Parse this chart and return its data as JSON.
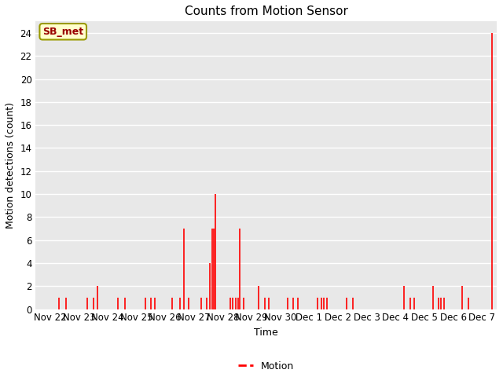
{
  "title": "Counts from Motion Sensor",
  "ylabel": "Motion detections (count)",
  "xlabel": "Time",
  "legend_label": "Motion",
  "line_color": "#ff0000",
  "plot_bg_color": "#e8e8e8",
  "fig_bg_color": "#ffffff",
  "ylim": [
    0,
    25
  ],
  "yticks": [
    0,
    2,
    4,
    6,
    8,
    10,
    12,
    14,
    16,
    18,
    20,
    22,
    24
  ],
  "annotation_text": "SB_met",
  "annotation_color": "#990000",
  "annotation_bg": "#ffffcc",
  "annotation_border": "#999900",
  "x_tick_labels": [
    "Nov 22",
    "Nov 23",
    "Nov 24",
    "Nov 25",
    "Nov 26",
    "Nov 27",
    "Nov 28",
    "Nov 29",
    "Nov 30",
    "Dec 1",
    "Dec 2",
    "Dec 3",
    "Dec 4",
    "Dec 5",
    "Dec 6",
    "Dec 7"
  ],
  "num_ticks": 16,
  "data_days_offset": [
    0.3,
    0.55,
    1.3,
    1.5,
    1.65,
    2.35,
    2.6,
    3.3,
    3.5,
    3.65,
    4.25,
    4.5,
    4.65,
    4.8,
    5.25,
    5.45,
    5.55,
    5.62,
    5.68,
    5.75,
    6.25,
    6.35,
    6.45,
    6.52,
    6.6,
    6.72,
    7.25,
    7.45,
    7.6,
    8.25,
    8.45,
    8.62,
    9.3,
    9.42,
    9.52,
    9.62,
    10.3,
    10.52,
    12.3,
    12.52,
    12.65,
    13.3,
    13.48,
    13.58,
    13.68,
    14.3,
    14.52,
    15.35
  ],
  "data_values": [
    1,
    1,
    1,
    1,
    2,
    1,
    1,
    1,
    1,
    1,
    1,
    1,
    7,
    1,
    1,
    1,
    4,
    7,
    7,
    10,
    1,
    1,
    1,
    1,
    7,
    1,
    2,
    1,
    1,
    1,
    1,
    1,
    1,
    1,
    1,
    1,
    1,
    1,
    2,
    1,
    1,
    2,
    1,
    1,
    1,
    2,
    1,
    24
  ],
  "title_fontsize": 11,
  "axis_label_fontsize": 9,
  "tick_fontsize": 8.5,
  "figsize": [
    6.4,
    4.8
  ],
  "dpi": 100
}
